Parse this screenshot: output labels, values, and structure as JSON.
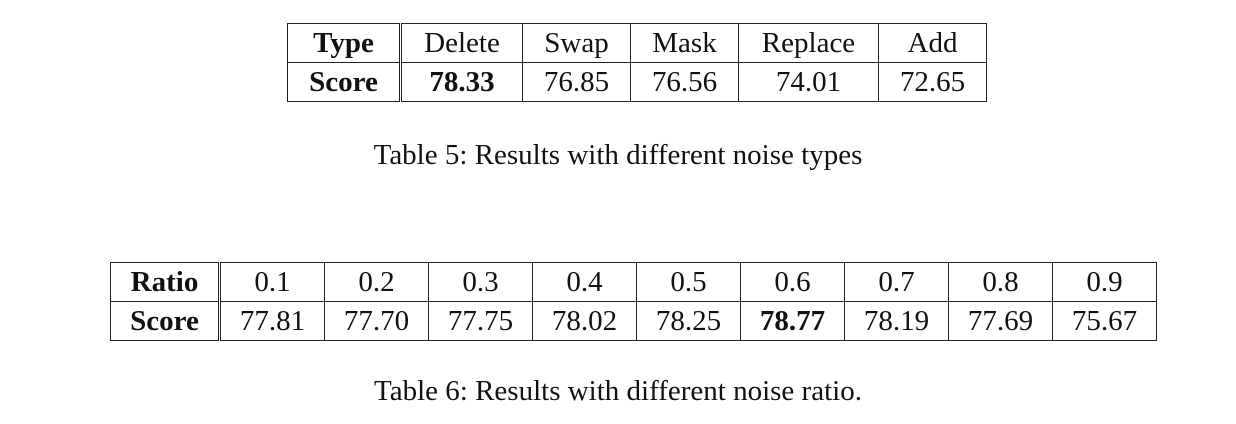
{
  "table5": {
    "row_header": [
      "Type",
      "Score"
    ],
    "columns": [
      "Delete",
      "Swap",
      "Mask",
      "Replace",
      "Add"
    ],
    "scores": [
      "78.33",
      "76.85",
      "76.56",
      "74.01",
      "72.65"
    ],
    "best_index": 0,
    "caption": "Table 5: Results with different noise types"
  },
  "table6": {
    "row_header": [
      "Ratio",
      "Score"
    ],
    "columns": [
      "0.1",
      "0.2",
      "0.3",
      "0.4",
      "0.5",
      "0.6",
      "0.7",
      "0.8",
      "0.9"
    ],
    "scores": [
      "77.81",
      "77.70",
      "77.75",
      "78.02",
      "78.25",
      "78.77",
      "78.19",
      "77.69",
      "75.67"
    ],
    "best_index": 5,
    "caption": "Table 6: Results with different noise ratio."
  }
}
